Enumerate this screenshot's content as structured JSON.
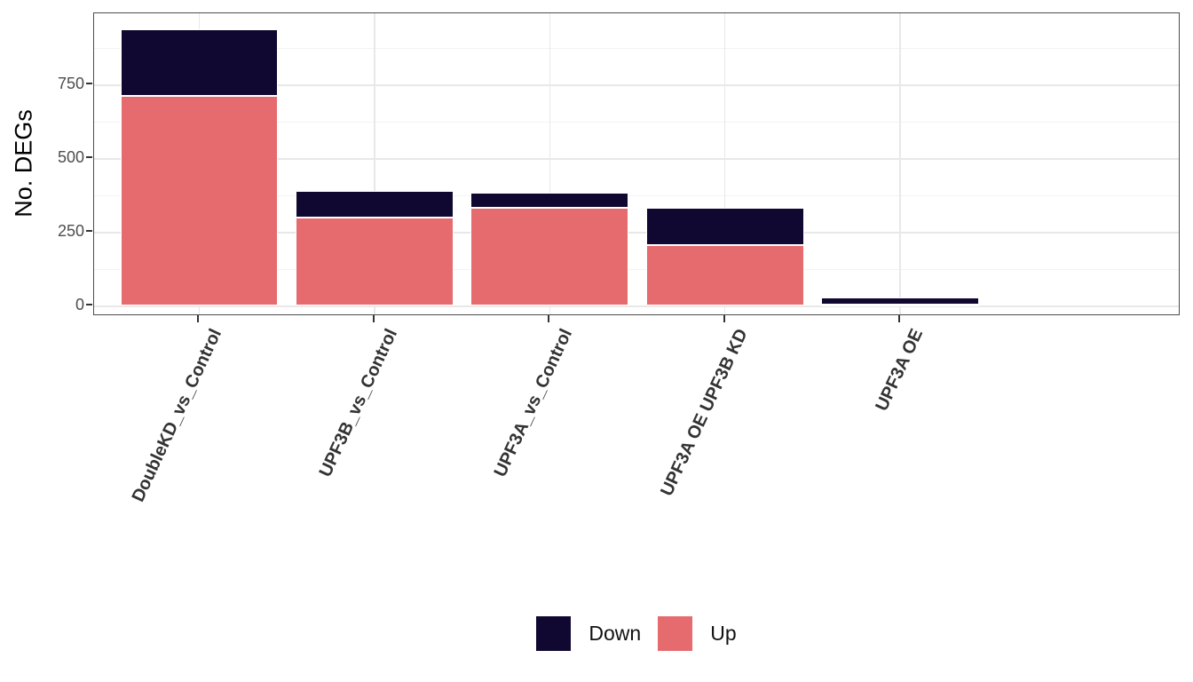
{
  "chart_data": {
    "type": "bar",
    "subtype": "stacked-vertical",
    "title": "",
    "xlabel": "",
    "ylabel": "No. DEGs",
    "categories": [
      "DoubleKD_vs_Control",
      "UPF3B_vs_Control",
      "UPF3A_vs_Control",
      "UPF3A OE UPF3B KD",
      "UPF3A OE"
    ],
    "series": [
      {
        "name": "Down",
        "color": "#100830",
        "values": [
          226,
          91,
          52,
          125,
          25
        ]
      },
      {
        "name": "Up",
        "color": "#E56B6E",
        "values": [
          711,
          298,
          331,
          205,
          3
        ]
      }
    ],
    "stack_bottom_series": "Up",
    "totals": [
      937,
      389,
      383,
      330,
      28
    ],
    "y_tick_labels": [
      "0",
      "250",
      "500",
      "750"
    ],
    "y_tick_values": [
      0,
      250,
      500,
      750
    ],
    "y_minor_values": [
      125,
      375,
      625,
      875
    ],
    "ylim": [
      0,
      990
    ],
    "grid": "horizontal major+minor, vertical major at category centers",
    "legend_position": "bottom-center",
    "legend_items": [
      {
        "label": "Down",
        "color": "#100830"
      },
      {
        "label": "Up",
        "color": "#E56B6E"
      }
    ]
  },
  "colors": {
    "down": "#100830",
    "up": "#E56B6E",
    "panel_border": "#4D4D4D",
    "grid_major": "#E8E8E8",
    "grid_minor": "#F3F3F3",
    "tick_mark": "#333333",
    "y_tick_label": "#4D4D4D",
    "x_tick_label": "#333333",
    "axis_title": "#000000",
    "background": "#FFFFFF"
  }
}
